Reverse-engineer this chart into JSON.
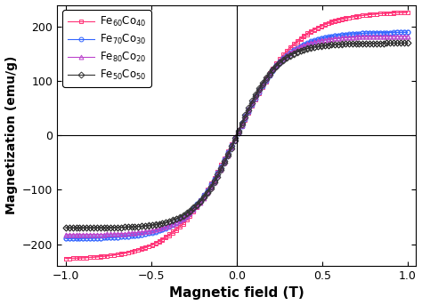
{
  "series": [
    {
      "label": "Fe$_{60}$Co$_{40}$",
      "color": "#FF3377",
      "marker": "s",
      "Ms": 228,
      "n": 2.8,
      "Hc": 0.005
    },
    {
      "label": "Fe$_{70}$Co$_{30}$",
      "color": "#3366FF",
      "marker": "o",
      "Ms": 190,
      "n": 3.5,
      "Hc": 0.004
    },
    {
      "label": "Fe$_{80}$Co$_{20}$",
      "color": "#BB44CC",
      "marker": "^",
      "Ms": 183,
      "n": 3.8,
      "Hc": 0.003
    },
    {
      "label": "Fe$_{50}$Co$_{50}$",
      "color": "#333333",
      "marker": "D",
      "Ms": 170,
      "n": 4.2,
      "Hc": 0.003
    }
  ],
  "xlabel": "Magnetic field (T)",
  "ylabel": "Magnetization (emu/g)",
  "xlim": [
    -1.05,
    1.05
  ],
  "ylim": [
    -240,
    240
  ],
  "xticks": [
    -1.0,
    -0.5,
    0.0,
    0.5,
    1.0
  ],
  "yticks": [
    -200,
    -100,
    0,
    100,
    200
  ],
  "background_color": "#ffffff",
  "legend_loc": "upper left",
  "markersize": 3.5,
  "linewidth": 0.8,
  "num_points": 100,
  "hysteresis_shift": 0.012
}
